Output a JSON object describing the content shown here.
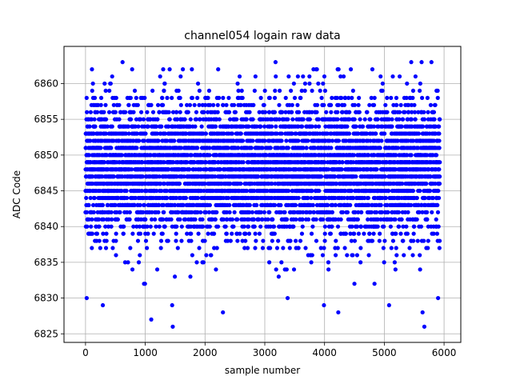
{
  "chart_data": {
    "type": "scatter",
    "title": "channel054 logain raw data",
    "xlabel": "sample number",
    "ylabel": "ADC Code",
    "xlim": [
      -360,
      6280
    ],
    "ylim": [
      6823.8,
      6865.2
    ],
    "xticks": [
      0,
      1000,
      2000,
      3000,
      4000,
      5000,
      6000
    ],
    "yticks": [
      6825,
      6830,
      6835,
      6840,
      6845,
      6850,
      6855,
      6860
    ],
    "grid": true,
    "marker_color": "#0000ff",
    "n_samples": 5930,
    "center_value": 6848,
    "spread_sd": 4.8,
    "min_value": 6826,
    "max_value": 6863,
    "extreme_points": [
      {
        "x": 620,
        "y": 6863
      },
      {
        "x": 3180,
        "y": 6863
      },
      {
        "x": 1460,
        "y": 6826
      },
      {
        "x": 5670,
        "y": 6826
      },
      {
        "x": 1100,
        "y": 6827
      },
      {
        "x": 2300,
        "y": 6828
      },
      {
        "x": 4230,
        "y": 6828
      },
      {
        "x": 5640,
        "y": 6828
      },
      {
        "x": 20,
        "y": 6830
      },
      {
        "x": 290,
        "y": 6829
      },
      {
        "x": 1450,
        "y": 6829
      },
      {
        "x": 3990,
        "y": 6829
      },
      {
        "x": 5080,
        "y": 6829
      },
      {
        "x": 5900,
        "y": 6830
      },
      {
        "x": 780,
        "y": 6862
      },
      {
        "x": 1300,
        "y": 6862
      },
      {
        "x": 1780,
        "y": 6862
      },
      {
        "x": 2220,
        "y": 6862
      },
      {
        "x": 3860,
        "y": 6862
      },
      {
        "x": 4220,
        "y": 6862
      },
      {
        "x": 4440,
        "y": 6862
      }
    ]
  }
}
